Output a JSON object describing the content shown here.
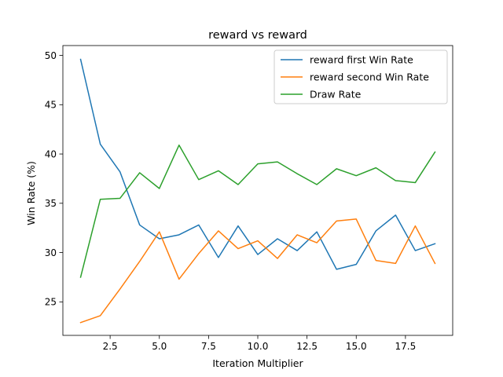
{
  "chart_data": {
    "type": "line",
    "title": "reward vs reward",
    "xlabel": "Iteration Multiplier",
    "ylabel": "Win Rate (%)",
    "xlim": [
      0.1,
      19.9
    ],
    "ylim": [
      21.6,
      51.0
    ],
    "xticks": [
      2.5,
      5.0,
      7.5,
      10.0,
      12.5,
      15.0,
      17.5
    ],
    "xtick_labels": [
      "2.5",
      "5.0",
      "7.5",
      "10.0",
      "12.5",
      "15.0",
      "17.5"
    ],
    "yticks": [
      25,
      30,
      35,
      40,
      45,
      50
    ],
    "ytick_labels": [
      "25",
      "30",
      "35",
      "40",
      "45",
      "50"
    ],
    "legend_position": "top-right",
    "x": [
      1,
      2,
      3,
      4,
      5,
      6,
      7,
      8,
      9,
      10,
      11,
      12,
      13,
      14,
      15,
      16,
      17,
      18,
      19
    ],
    "series": [
      {
        "name": "reward first Win Rate",
        "color": "#1f77b4",
        "values": [
          49.6,
          41.0,
          38.2,
          32.8,
          31.4,
          31.8,
          32.8,
          29.5,
          32.7,
          29.8,
          31.4,
          30.2,
          32.1,
          28.3,
          28.8,
          32.2,
          33.8,
          30.2,
          30.9
        ]
      },
      {
        "name": "reward second Win Rate",
        "color": "#ff7f0e",
        "values": [
          22.9,
          23.6,
          26.3,
          29.1,
          32.1,
          27.3,
          29.9,
          32.2,
          30.4,
          31.2,
          29.4,
          31.8,
          31.0,
          33.2,
          33.4,
          29.2,
          28.9,
          32.7,
          28.9
        ]
      },
      {
        "name": "Draw Rate",
        "color": "#2ca02c",
        "values": [
          27.5,
          35.4,
          35.5,
          38.1,
          36.5,
          40.9,
          37.4,
          38.3,
          36.9,
          39.0,
          39.2,
          38.0,
          36.9,
          38.5,
          37.8,
          38.6,
          37.3,
          37.1,
          40.2
        ]
      }
    ]
  }
}
